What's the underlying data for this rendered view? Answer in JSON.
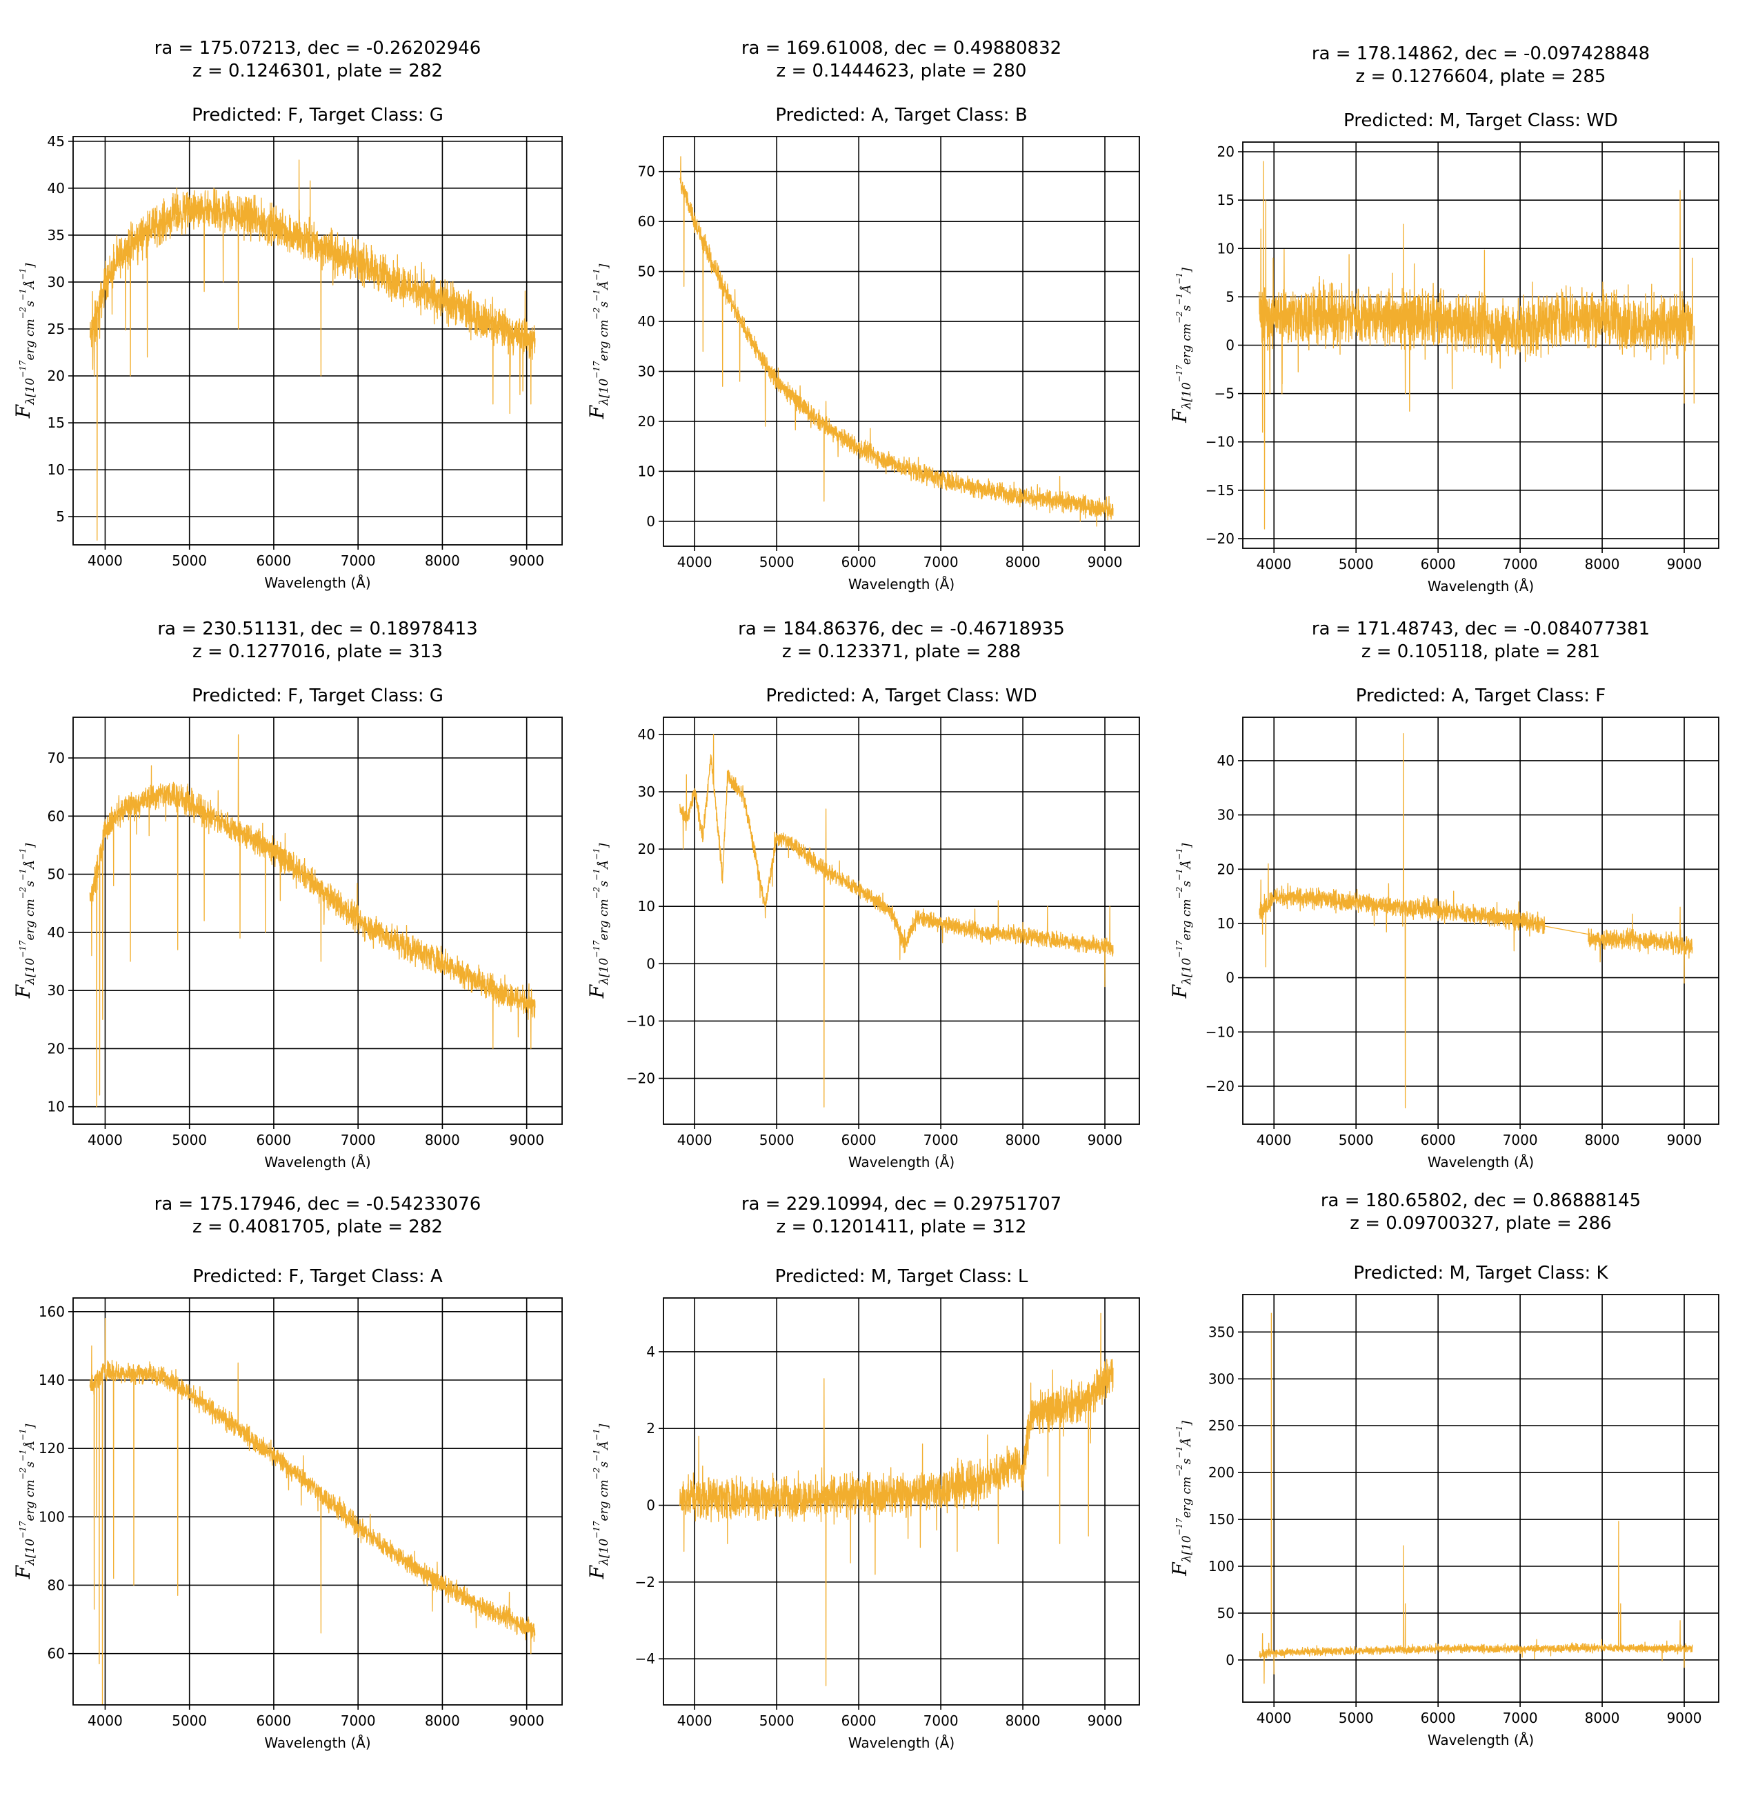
{
  "figure": {
    "line_color": "#F2AE2E",
    "ylabel_main": "F",
    "ylabel_sub": "λ[10",
    "ylabel_exp1": "−17",
    "ylabel_mid": "erg cm",
    "ylabel_exp2": "−2",
    "ylabel_s": "s",
    "ylabel_exp3": "−1",
    "ylabel_A": "Å",
    "ylabel_exp4": "−1",
    "ylabel_end": "]"
  },
  "chart_data": [
    {
      "type": "line",
      "title_line1": "ra = 175.07213, dec = -0.26202946",
      "title_line2": "z = 0.1246301, plate = 282",
      "title_line3": "Predicted: F, Target Class: G",
      "xlabel": "Wavelength (Å)",
      "xlim": [
        3620,
        9420
      ],
      "ylim": [
        2,
        45.5
      ],
      "xticks": [
        4000,
        5000,
        6000,
        7000,
        8000,
        9000
      ],
      "yticks": [
        5,
        10,
        15,
        20,
        25,
        30,
        35,
        40,
        45
      ],
      "grid": true,
      "continuum": [
        [
          3820,
          24
        ],
        [
          3900,
          26
        ],
        [
          4000,
          30
        ],
        [
          4200,
          33
        ],
        [
          4500,
          35.5
        ],
        [
          4800,
          37
        ],
        [
          5000,
          37.5
        ],
        [
          5500,
          37.5
        ],
        [
          6000,
          36
        ],
        [
          6500,
          34
        ],
        [
          7000,
          32
        ],
        [
          7500,
          30
        ],
        [
          8000,
          28
        ],
        [
          8500,
          26
        ],
        [
          9000,
          24
        ],
        [
          9100,
          23.5
        ]
      ],
      "noise": 1.8,
      "spikes": [
        [
          3850,
          29
        ],
        [
          3870,
          20
        ],
        [
          3890,
          28
        ],
        [
          3905,
          2.5
        ],
        [
          3935,
          24
        ],
        [
          4100,
          34
        ],
        [
          4300,
          20
        ],
        [
          4500,
          22
        ],
        [
          4850,
          40
        ],
        [
          5175,
          29
        ],
        [
          5400,
          30
        ],
        [
          5580,
          25
        ],
        [
          6300,
          43
        ],
        [
          6560,
          20
        ],
        [
          8600,
          17
        ],
        [
          8800,
          16
        ],
        [
          8920,
          18
        ],
        [
          9050,
          17
        ]
      ]
    },
    {
      "type": "line",
      "title_line1": "ra = 169.61008, dec = 0.49880832",
      "title_line2": "z = 0.1444623, plate = 280",
      "title_line3": "Predicted: A, Target Class: B",
      "xlabel": "Wavelength (Å)",
      "xlim": [
        3620,
        9420
      ],
      "ylim": [
        -5,
        77
      ],
      "xticks": [
        4000,
        5000,
        6000,
        7000,
        8000,
        9000
      ],
      "yticks": [
        0,
        10,
        20,
        30,
        40,
        50,
        60,
        70
      ],
      "grid": true,
      "continuum": [
        [
          3820,
          68
        ],
        [
          3900,
          65
        ],
        [
          4000,
          60
        ],
        [
          4200,
          52
        ],
        [
          4500,
          42
        ],
        [
          4800,
          33
        ],
        [
          5000,
          28
        ],
        [
          5500,
          20
        ],
        [
          6000,
          14.5
        ],
        [
          6500,
          11
        ],
        [
          7000,
          8.5
        ],
        [
          7500,
          6.5
        ],
        [
          8000,
          5
        ],
        [
          8500,
          3.8
        ],
        [
          9000,
          2.5
        ],
        [
          9100,
          2
        ]
      ],
      "noise": 1.6,
      "spikes": [
        [
          3830,
          73
        ],
        [
          3870,
          47
        ],
        [
          3960,
          62
        ],
        [
          4102,
          34
        ],
        [
          4340,
          27
        ],
        [
          4550,
          28
        ],
        [
          4861,
          19
        ],
        [
          5577,
          4
        ],
        [
          5600,
          24
        ],
        [
          8450,
          9
        ],
        [
          8700,
          0
        ],
        [
          8900,
          -1
        ],
        [
          9050,
          5
        ]
      ]
    },
    {
      "type": "line",
      "title_line1": "ra = 178.14862, dec = -0.097428848",
      "title_line2": "z = 0.1276604, plate = 285",
      "title_line3": "Predicted: M, Target Class: WD",
      "xlabel": "Wavelength (Å)",
      "xlim": [
        3620,
        9420
      ],
      "ylim": [
        -21,
        21
      ],
      "xticks": [
        4000,
        5000,
        6000,
        7000,
        8000,
        9000
      ],
      "yticks": [
        -20,
        -15,
        -10,
        -5,
        0,
        5,
        10,
        15,
        20
      ],
      "grid": true,
      "continuum": [
        [
          3820,
          3
        ],
        [
          4000,
          3
        ],
        [
          5000,
          3
        ],
        [
          6000,
          2.5
        ],
        [
          6500,
          2
        ],
        [
          7000,
          1.5
        ],
        [
          7500,
          3
        ],
        [
          8000,
          3
        ],
        [
          8500,
          2
        ],
        [
          9000,
          2
        ],
        [
          9100,
          2
        ]
      ],
      "noise": 2.5,
      "spikes": [
        [
          3840,
          12
        ],
        [
          3860,
          -9
        ],
        [
          3870,
          19
        ],
        [
          3885,
          -19
        ],
        [
          3900,
          15
        ],
        [
          3950,
          -5
        ],
        [
          3990,
          9
        ],
        [
          4100,
          -4
        ],
        [
          5577,
          12.5
        ],
        [
          5600,
          -5
        ],
        [
          8950,
          16
        ],
        [
          9000,
          -6
        ],
        [
          9100,
          9
        ],
        [
          9120,
          -6
        ]
      ]
    },
    {
      "type": "line",
      "title_line1": "ra = 230.51131, dec = 0.18978413",
      "title_line2": "z = 0.1277016, plate = 313",
      "title_line3": "Predicted: F, Target Class: G",
      "xlabel": "Wavelength (Å)",
      "xlim": [
        3620,
        9420
      ],
      "ylim": [
        7,
        77
      ],
      "xticks": [
        4000,
        5000,
        6000,
        7000,
        8000,
        9000
      ],
      "yticks": [
        10,
        20,
        30,
        40,
        50,
        60,
        70
      ],
      "grid": true,
      "continuum": [
        [
          3820,
          45
        ],
        [
          3900,
          50
        ],
        [
          4000,
          58
        ],
        [
          4200,
          61
        ],
        [
          4500,
          63
        ],
        [
          4800,
          64
        ],
        [
          5000,
          62
        ],
        [
          5500,
          58
        ],
        [
          6000,
          54
        ],
        [
          6500,
          48
        ],
        [
          7000,
          42
        ],
        [
          7500,
          38
        ],
        [
          8000,
          35
        ],
        [
          8500,
          31
        ],
        [
          9000,
          28
        ],
        [
          9100,
          27
        ]
      ],
      "noise": 2.0,
      "spikes": [
        [
          3840,
          36
        ],
        [
          3900,
          10
        ],
        [
          3935,
          12
        ],
        [
          3970,
          25
        ],
        [
          4100,
          48
        ],
        [
          4300,
          35
        ],
        [
          4861,
          37
        ],
        [
          5175,
          42
        ],
        [
          5580,
          74
        ],
        [
          5600,
          39
        ],
        [
          5900,
          40
        ],
        [
          6560,
          35
        ],
        [
          8600,
          20
        ],
        [
          8900,
          22
        ],
        [
          9050,
          20
        ]
      ]
    },
    {
      "type": "line",
      "title_line1": "ra = 184.86376, dec = -0.46718935",
      "title_line2": "z = 0.123371, plate = 288",
      "title_line3": "Predicted: A, Target Class: WD",
      "xlabel": "Wavelength (Å)",
      "xlim": [
        3620,
        9420
      ],
      "ylim": [
        -28,
        43
      ],
      "xticks": [
        4000,
        5000,
        6000,
        7000,
        8000,
        9000
      ],
      "yticks": [
        -20,
        -10,
        0,
        10,
        20,
        30,
        40
      ],
      "grid": true,
      "continuum": [
        [
          3820,
          27
        ],
        [
          3900,
          25
        ],
        [
          4000,
          30
        ],
        [
          4100,
          22
        ],
        [
          4200,
          36
        ],
        [
          4340,
          15
        ],
        [
          4400,
          33
        ],
        [
          4600,
          29
        ],
        [
          4861,
          10
        ],
        [
          5000,
          22
        ],
        [
          5200,
          21
        ],
        [
          5500,
          17
        ],
        [
          6000,
          13
        ],
        [
          6400,
          9
        ],
        [
          6563,
          3
        ],
        [
          6700,
          8
        ],
        [
          7000,
          7
        ],
        [
          7500,
          5.5
        ],
        [
          8000,
          5
        ],
        [
          8500,
          4
        ],
        [
          9000,
          3
        ],
        [
          9100,
          3
        ]
      ],
      "noise": 1.2,
      "spikes": [
        [
          3860,
          20
        ],
        [
          3900,
          33
        ],
        [
          4230,
          40
        ],
        [
          4861,
          8
        ],
        [
          5577,
          -25
        ],
        [
          5600,
          27
        ],
        [
          7700,
          11
        ],
        [
          8300,
          10
        ],
        [
          9000,
          -4
        ],
        [
          9060,
          10
        ]
      ]
    },
    {
      "type": "line",
      "title_line1": "ra = 171.48743, dec = -0.084077381",
      "title_line2": "z = 0.105118, plate = 281",
      "title_line3": "Predicted: A, Target Class: F",
      "xlabel": "Wavelength (Å)",
      "xlim": [
        3620,
        9420
      ],
      "ylim": [
        -27,
        48
      ],
      "xticks": [
        4000,
        5000,
        6000,
        7000,
        8000,
        9000
      ],
      "yticks": [
        -20,
        -10,
        0,
        10,
        20,
        30,
        40
      ],
      "grid": true,
      "continuum": [
        [
          3820,
          12
        ],
        [
          4000,
          15
        ],
        [
          4500,
          14.5
        ],
        [
          5000,
          14
        ],
        [
          5500,
          13
        ],
        [
          6000,
          12.5
        ],
        [
          6500,
          11.5
        ],
        [
          7000,
          10.5
        ],
        [
          7300,
          9.5
        ]
      ],
      "continuum2": [
        [
          7830,
          7
        ],
        [
          8000,
          7
        ],
        [
          8500,
          7
        ],
        [
          9000,
          6
        ],
        [
          9100,
          5.5
        ]
      ],
      "bridge": [
        [
          7300,
          9.5
        ],
        [
          7830,
          8
        ]
      ],
      "noise": 1.5,
      "spikes": [
        [
          3840,
          18
        ],
        [
          3860,
          8
        ],
        [
          3900,
          2
        ],
        [
          3930,
          21
        ],
        [
          5577,
          45
        ],
        [
          5600,
          -24
        ],
        [
          8950,
          13
        ],
        [
          9000,
          -1
        ]
      ]
    },
    {
      "type": "line",
      "title_line1": "ra = 175.17946, dec = -0.54233076",
      "title_line2": "z = 0.4081705, plate = 282",
      "title_line3": "Predicted: F, Target Class: A",
      "xlabel": "Wavelength (Å)",
      "xlim": [
        3620,
        9420
      ],
      "ylim": [
        45,
        164
      ],
      "xticks": [
        4000,
        5000,
        6000,
        7000,
        8000,
        9000
      ],
      "yticks": [
        60,
        80,
        100,
        120,
        140,
        160
      ],
      "grid": true,
      "continuum": [
        [
          3820,
          138
        ],
        [
          4000,
          143
        ],
        [
          4200,
          142
        ],
        [
          4500,
          142
        ],
        [
          4800,
          140
        ],
        [
          5000,
          136
        ],
        [
          5500,
          127
        ],
        [
          6000,
          118
        ],
        [
          6500,
          108
        ],
        [
          7000,
          97
        ],
        [
          7500,
          88
        ],
        [
          8000,
          80
        ],
        [
          8500,
          73
        ],
        [
          9000,
          68
        ],
        [
          9100,
          66
        ]
      ],
      "noise": 2.5,
      "spikes": [
        [
          3840,
          150
        ],
        [
          3870,
          73
        ],
        [
          3900,
          100
        ],
        [
          3930,
          57
        ],
        [
          3968,
          45
        ],
        [
          4000,
          158
        ],
        [
          4100,
          82
        ],
        [
          4340,
          80
        ],
        [
          4861,
          77
        ],
        [
          5577,
          145
        ],
        [
          6560,
          66
        ],
        [
          9050,
          60
        ]
      ]
    },
    {
      "type": "line",
      "title_line1": "ra = 229.10994, dec = 0.29751707",
      "title_line2": "z = 0.1201411, plate = 312",
      "title_line3": "Predicted: M, Target Class: L",
      "xlabel": "Wavelength (Å)",
      "xlim": [
        3620,
        9420
      ],
      "ylim": [
        -5.2,
        5.4
      ],
      "xticks": [
        4000,
        5000,
        6000,
        7000,
        8000,
        9000
      ],
      "yticks": [
        -4,
        -2,
        0,
        2,
        4
      ],
      "grid": true,
      "continuum": [
        [
          3820,
          0.2
        ],
        [
          4500,
          0.2
        ],
        [
          5500,
          0.2
        ],
        [
          6500,
          0.3
        ],
        [
          7000,
          0.4
        ],
        [
          7500,
          0.6
        ],
        [
          7900,
          1.1
        ],
        [
          8000,
          0.8
        ],
        [
          8100,
          2.4
        ],
        [
          8400,
          2.5
        ],
        [
          8700,
          2.6
        ],
        [
          9000,
          3.2
        ],
        [
          9100,
          3.5
        ]
      ],
      "noise": 0.45,
      "spikes": [
        [
          3870,
          -1.2
        ],
        [
          4050,
          1.8
        ],
        [
          4400,
          -1.0
        ],
        [
          5577,
          3.3
        ],
        [
          5600,
          -4.7
        ],
        [
          5900,
          -1.5
        ],
        [
          6200,
          -1.8
        ],
        [
          7200,
          -1.2
        ],
        [
          7700,
          -1.0
        ],
        [
          8450,
          -1.0
        ],
        [
          8800,
          -0.8
        ],
        [
          8950,
          5.0
        ]
      ]
    },
    {
      "type": "line",
      "title_line1": "ra = 180.65802, dec = 0.86888145",
      "title_line2": "z = 0.09700327, plate = 286",
      "title_line3": "Predicted: M, Target Class: K",
      "xlabel": "Wavelength (Å)",
      "xlim": [
        3620,
        9420
      ],
      "ylim": [
        -45,
        390
      ],
      "xticks": [
        4000,
        5000,
        6000,
        7000,
        8000,
        9000
      ],
      "yticks": [
        0,
        50,
        100,
        150,
        200,
        250,
        300,
        350
      ],
      "grid": true,
      "continuum": [
        [
          3820,
          5
        ],
        [
          4000,
          8
        ],
        [
          5000,
          10
        ],
        [
          6000,
          12
        ],
        [
          7000,
          12
        ],
        [
          8000,
          13
        ],
        [
          9000,
          12
        ],
        [
          9100,
          12
        ]
      ],
      "noise": 3.5,
      "spikes": [
        [
          3860,
          28
        ],
        [
          3880,
          -25
        ],
        [
          3968,
          370
        ],
        [
          4000,
          -15
        ],
        [
          5577,
          122
        ],
        [
          5600,
          60
        ],
        [
          8200,
          148
        ],
        [
          8225,
          60
        ],
        [
          8950,
          42
        ],
        [
          9000,
          -8
        ]
      ]
    }
  ]
}
